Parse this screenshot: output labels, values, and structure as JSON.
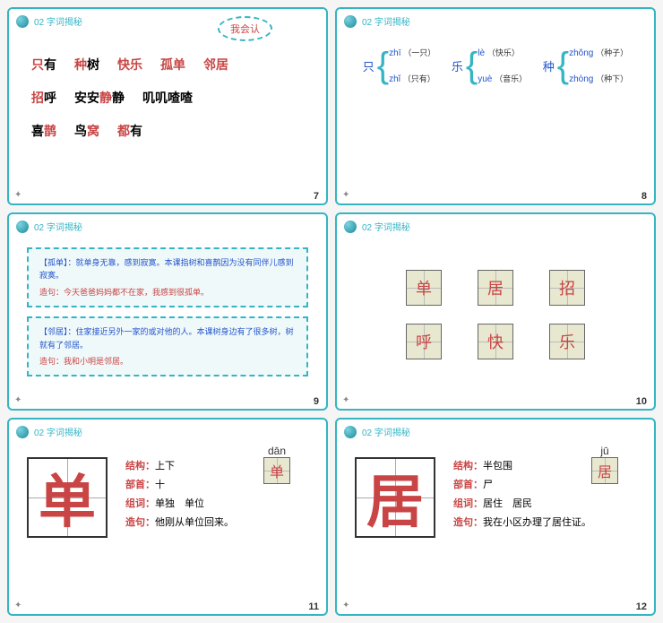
{
  "header_label": "02  字词揭秘",
  "cloud_label": "我会认",
  "slide1": {
    "rows": [
      [
        {
          "t": "只",
          "c": "red"
        },
        {
          "t": "有",
          "c": "black"
        },
        {
          "t": "种",
          "c": "red"
        },
        {
          "t": "树",
          "c": "black"
        },
        {
          "t": "快乐",
          "c": "red"
        },
        {
          "t": "孤单",
          "c": "red"
        },
        {
          "t": "邻居",
          "c": "red"
        }
      ],
      [
        {
          "t": "招",
          "c": "red"
        },
        {
          "t": "呼",
          "c": "black"
        },
        {
          "t": "安安",
          "c": "black"
        },
        {
          "t": "静",
          "c": "red"
        },
        {
          "t": "静",
          "c": "black"
        },
        {
          "t": "叽叽喳喳",
          "c": "black"
        }
      ],
      [
        {
          "t": "喜",
          "c": "black"
        },
        {
          "t": "鹊",
          "c": "red"
        },
        {
          "t": "鸟",
          "c": "black"
        },
        {
          "t": "窝",
          "c": "red"
        },
        {
          "t": "都",
          "c": "red"
        },
        {
          "t": "有",
          "c": "black"
        }
      ]
    ],
    "page": "7"
  },
  "slide2": {
    "cols": [
      {
        "char": "只",
        "items": [
          {
            "py": "zhī",
            "ex": "（一只）"
          },
          {
            "py": "zhǐ",
            "ex": "（只有）"
          }
        ]
      },
      {
        "char": "乐",
        "items": [
          {
            "py": "lè",
            "ex": "（快乐）"
          },
          {
            "py": "yuè",
            "ex": "（音乐）"
          }
        ]
      },
      {
        "char": "种",
        "items": [
          {
            "py": "zhǒng",
            "ex": "（种子）"
          },
          {
            "py": "zhòng",
            "ex": "（种下）"
          }
        ]
      }
    ],
    "page": "8"
  },
  "slide3": {
    "defs": [
      {
        "title": "【孤单】：",
        "body": "就单身无靠，感到寂寞。本课指树和喜鹊因为没有同伴儿感到寂寞。",
        "sentence": "造句：今天爸爸妈妈都不在家，我感到很孤单。"
      },
      {
        "title": "【邻居】：",
        "body": "住家接近另外一家的或对他的人。本课树身边有了很多树，树就有了邻居。",
        "sentence": "造句：我和小明是邻居。"
      }
    ],
    "page": "9"
  },
  "slide4": {
    "chars": [
      "单",
      "居",
      "招",
      "呼",
      "快",
      "乐"
    ],
    "page": "10"
  },
  "slide5": {
    "char": "单",
    "pinyin": "dān",
    "info": [
      {
        "label": "结构：",
        "val": "上下"
      },
      {
        "label": "部首：",
        "val": "十"
      },
      {
        "label": "组词：",
        "val": "单独　单位"
      },
      {
        "label": "造句：",
        "val": "他刚从单位回来。"
      }
    ],
    "page": "11"
  },
  "slide6": {
    "char": "居",
    "pinyin": "jū",
    "info": [
      {
        "label": "结构：",
        "val": "半包围"
      },
      {
        "label": "部首：",
        "val": "尸"
      },
      {
        "label": "组词：",
        "val": "居住　居民"
      },
      {
        "label": "造句：",
        "val": "我在小区办理了居住证。"
      }
    ],
    "page": "12"
  },
  "colors": {
    "border": "#35b5c4",
    "red": "#c94545",
    "blue": "#2255cc"
  }
}
